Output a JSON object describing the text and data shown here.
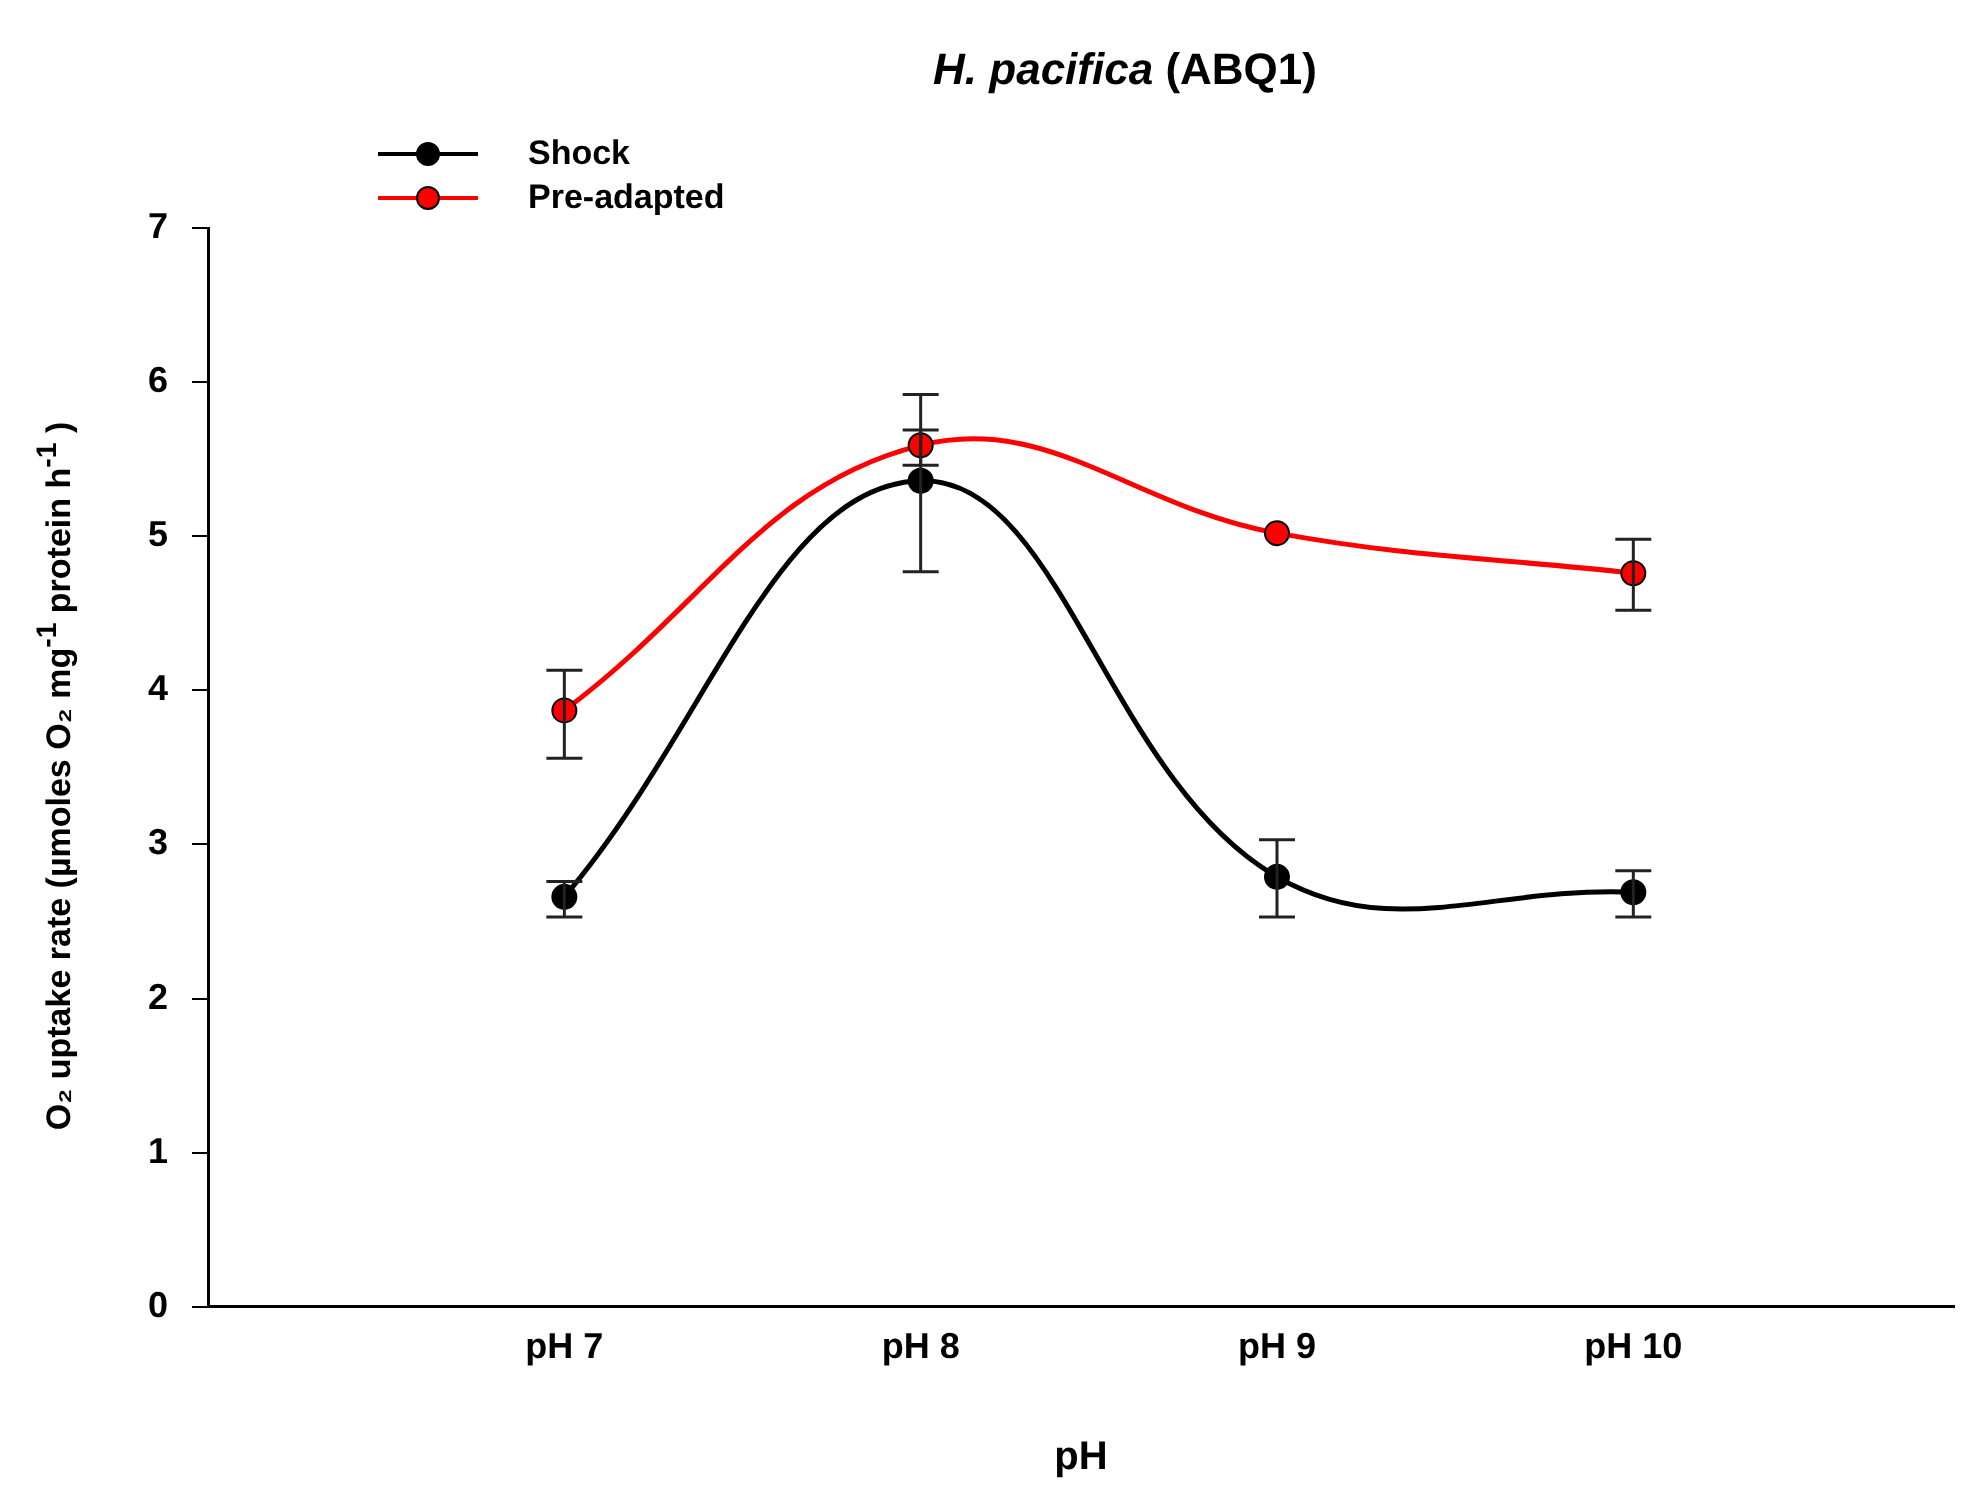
{
  "chart_data": {
    "type": "line",
    "title": "H. pacifica (ABQ1)",
    "xlabel": "pH",
    "ylabel": "O₂ uptake rate (µmoles O₂ mg$^{-1}$ protein h$^{-1}$ )",
    "categories": [
      "pH 7",
      "pH 8",
      "pH 9",
      "pH 10"
    ],
    "series": [
      {
        "name": "Shock",
        "color": "#000000",
        "values": [
          2.66,
          5.36,
          2.79,
          2.69
        ],
        "errors": [
          [
            2.53,
            2.76
          ],
          [
            4.77,
            5.92
          ],
          [
            2.53,
            3.03
          ],
          [
            2.53,
            2.83
          ]
        ]
      },
      {
        "name": "Pre-adapted",
        "color": "#ff0000",
        "values": [
          3.87,
          5.59,
          5.02,
          4.76
        ],
        "errors": [
          [
            3.56,
            4.13
          ],
          [
            5.46,
            5.69
          ],
          null,
          [
            4.52,
            4.98
          ]
        ]
      }
    ],
    "ylim": [
      0,
      7
    ],
    "yticks": [
      0,
      1,
      2,
      3,
      4,
      5,
      6,
      7
    ],
    "grid": false,
    "legend": "top left",
    "marker": "circle",
    "line_style": "solid"
  }
}
